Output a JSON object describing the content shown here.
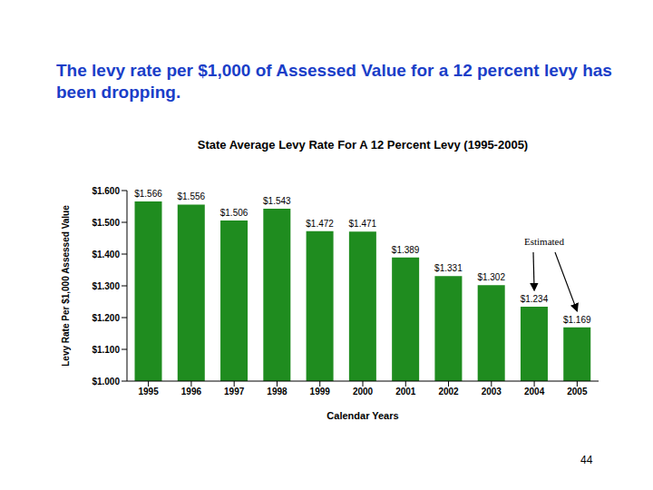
{
  "heading": "The levy rate per $1,000 of Assessed Value for a 12 percent levy has been dropping.",
  "page_number": "44",
  "chart_data": {
    "type": "bar",
    "title": "State Average Levy Rate For A 12 Percent Levy  (1995-2005)",
    "y_label": "Levy Rate Per $1,000 Assessed Value",
    "x_label": "Calendar Years",
    "categories": [
      "1995",
      "1996",
      "1997",
      "1998",
      "1999",
      "2000",
      "2001",
      "2002",
      "2003",
      "2004",
      "2005"
    ],
    "values": [
      1.566,
      1.556,
      1.506,
      1.543,
      1.472,
      1.471,
      1.389,
      1.331,
      1.302,
      1.234,
      1.169
    ],
    "value_labels": [
      "$1.566",
      "$1.556",
      "$1.506",
      "$1.543",
      "$1.472",
      "$1.471",
      "$1.389",
      "$1.331",
      "$1.302",
      "$1.234",
      "$1.169"
    ],
    "color": "#1f8c1f",
    "ylim": [
      1.0,
      1.6
    ],
    "yticks": [
      {
        "value": 1.0,
        "label": "$1.000"
      },
      {
        "value": 1.1,
        "label": "$1.100"
      },
      {
        "value": 1.2,
        "label": "$1.200"
      },
      {
        "value": 1.3,
        "label": "$1.300"
      },
      {
        "value": 1.4,
        "label": "$1.400"
      },
      {
        "value": 1.5,
        "label": "$1.500"
      },
      {
        "value": 1.6,
        "label": "$1.600"
      }
    ],
    "grid": false,
    "data_labels": true,
    "annotation": {
      "text": "Estimated",
      "categories": [
        "2004",
        "2005"
      ]
    }
  }
}
